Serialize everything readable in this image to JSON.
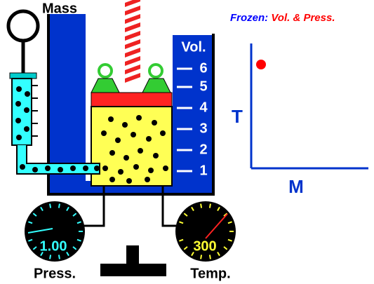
{
  "mass_label": "Mass",
  "frozen": {
    "prefix": "Frozen:",
    "items": "Vol. & Press."
  },
  "volume": {
    "label": "Vol.",
    "ticks": [
      "1",
      "2",
      "3",
      "4",
      "5",
      "6"
    ]
  },
  "plot": {
    "y_label": "T",
    "x_label": "M"
  },
  "pressure_gauge": {
    "value": "1.00",
    "label": "Press."
  },
  "temperature_gauge": {
    "value": 300,
    "label": "Temp."
  }
}
